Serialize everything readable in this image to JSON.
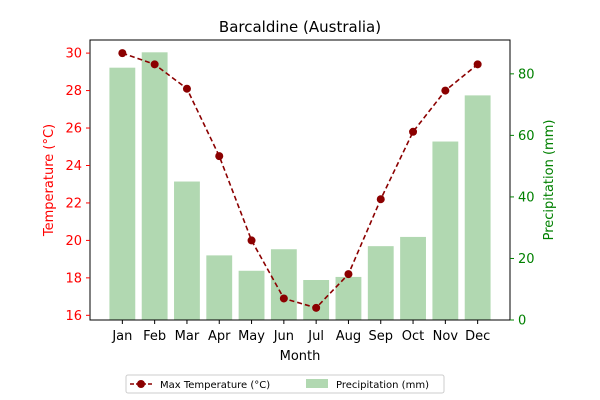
{
  "chart_data": {
    "type": "bar+line",
    "title": "Barcaldine (Australia)",
    "xlabel": "Month",
    "ylabel_left": "Temperature (°C)",
    "ylabel_right": "Precipitation (mm)",
    "categories": [
      "Jan",
      "Feb",
      "Mar",
      "Apr",
      "May",
      "Jun",
      "Jul",
      "Aug",
      "Sep",
      "Oct",
      "Nov",
      "Dec"
    ],
    "ylim_left": [
      15.75,
      30.7
    ],
    "ylim_right": [
      0,
      91
    ],
    "yticks_left": [
      16,
      18,
      20,
      22,
      24,
      26,
      28,
      30
    ],
    "yticks_right": [
      0,
      20,
      40,
      60,
      80
    ],
    "legend_position": "bottom-center",
    "series": [
      {
        "name": "Max Temperature (°C)",
        "type": "line",
        "axis": "left",
        "color": "#8b0000",
        "values": [
          30.0,
          29.4,
          28.1,
          24.5,
          20.0,
          16.9,
          16.4,
          18.2,
          22.2,
          25.8,
          28.0,
          29.4
        ]
      },
      {
        "name": "Precipitation (mm)",
        "type": "bar",
        "axis": "right",
        "color": "#b1d8b1",
        "values": [
          82,
          87,
          45,
          21,
          16,
          23,
          13,
          14,
          24,
          27,
          58,
          73
        ]
      }
    ],
    "colors": {
      "left_axis": "#ff0000",
      "right_axis": "#008000",
      "line": "#8b0000",
      "bar": "#b1d8b1"
    }
  }
}
